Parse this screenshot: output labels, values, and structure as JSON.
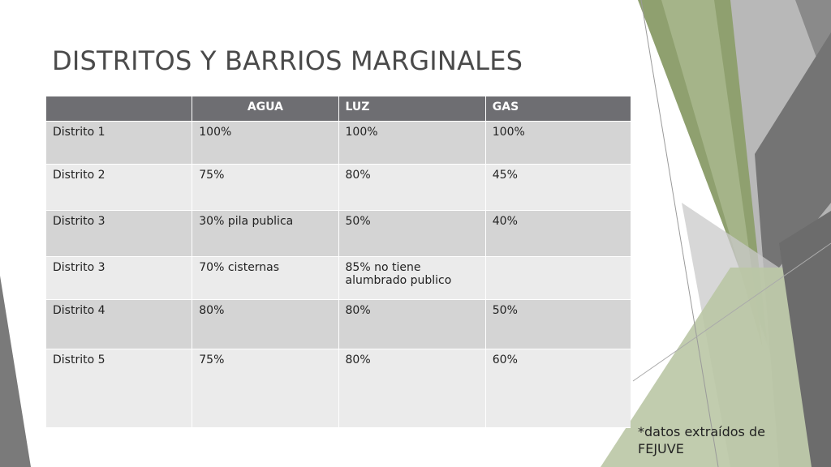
{
  "slide": {
    "title": "DISTRITOS Y BARRIOS MARGINALES",
    "note": "*datos extraídos de FEJUVE"
  },
  "colors": {
    "header_bg": "#6e6e72",
    "row_dark": "#d4d4d4",
    "row_light": "#ebebeb",
    "accent_green": "#a3b18a",
    "accent_gray": "#7f7f7f"
  },
  "table": {
    "headers": [
      "",
      "AGUA",
      "LUZ",
      "GAS"
    ],
    "rows": [
      [
        "Distrito 1",
        "100%",
        "100%",
        "100%"
      ],
      [
        "Distrito 2",
        "75%",
        "80%",
        "45%"
      ],
      [
        "Distrito 3",
        "30% pila publica",
        "50%",
        "40%"
      ],
      [
        "Distrito 3",
        "70% cisternas",
        "85% no tiene alumbrado publico",
        ""
      ],
      [
        "Distrito 4",
        "80%",
        "80%",
        "50%"
      ],
      [
        "Distrito 5",
        "75%",
        "80%",
        "60%"
      ]
    ]
  }
}
